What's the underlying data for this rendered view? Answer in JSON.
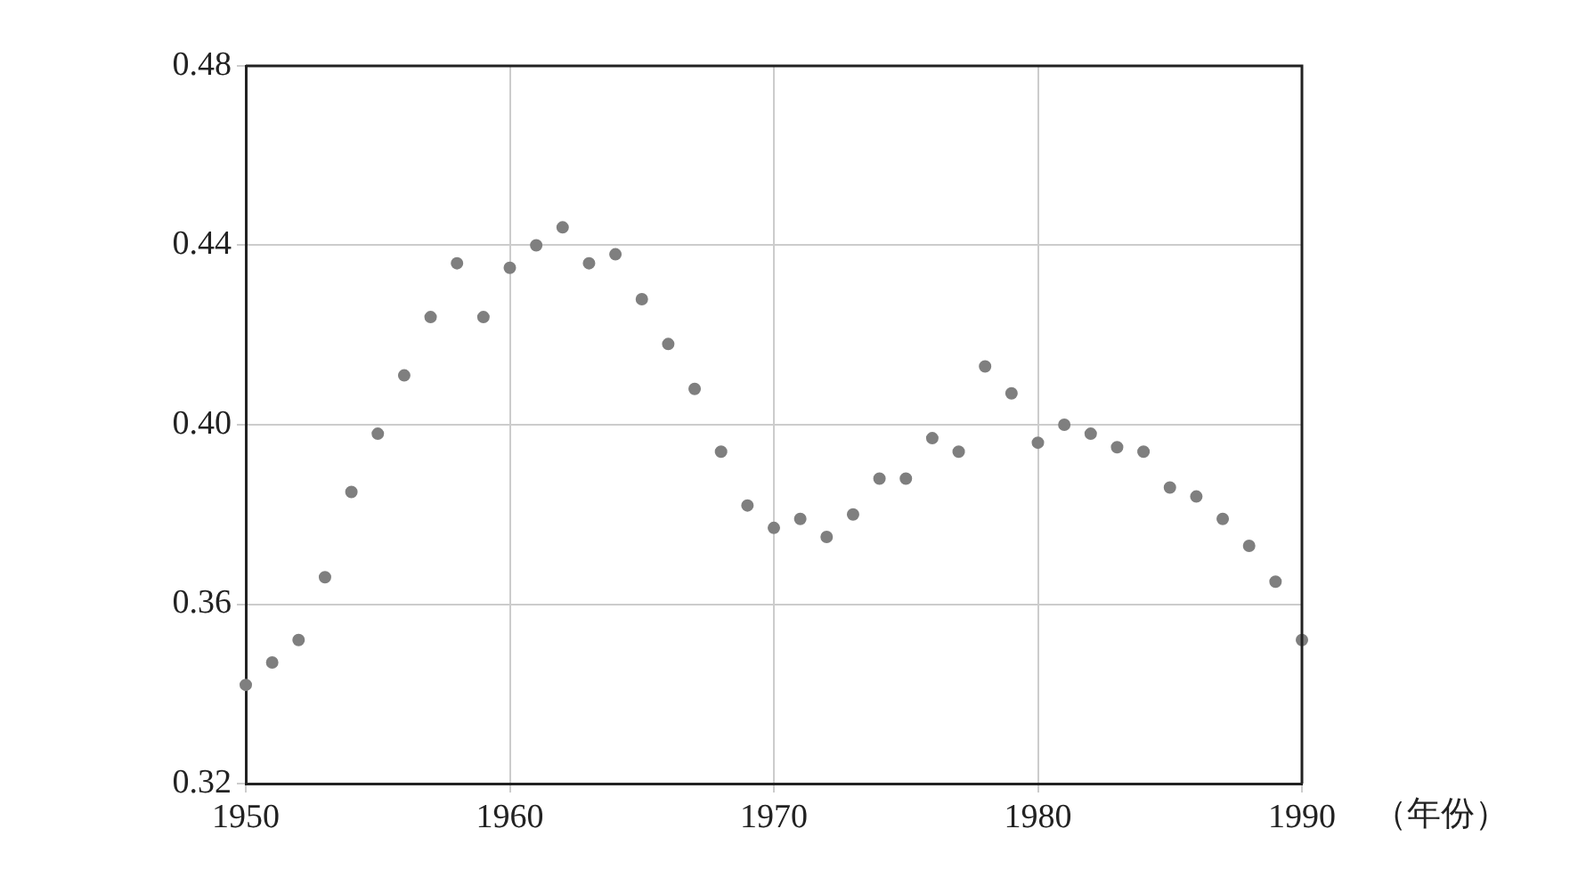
{
  "chart_data": {
    "type": "scatter",
    "xlabel": "（年份）",
    "x": [
      1950,
      1951,
      1952,
      1953,
      1954,
      1955,
      1956,
      1957,
      1958,
      1959,
      1960,
      1961,
      1962,
      1963,
      1964,
      1965,
      1966,
      1967,
      1968,
      1969,
      1970,
      1971,
      1972,
      1973,
      1974,
      1975,
      1976,
      1977,
      1978,
      1979,
      1980,
      1981,
      1982,
      1983,
      1984,
      1985,
      1986,
      1987,
      1988,
      1989,
      1990
    ],
    "series": [
      {
        "color": "#7f7f7f",
        "values": [
          0.342,
          0.347,
          0.352,
          0.366,
          0.385,
          0.398,
          0.411,
          0.424,
          0.436,
          0.424,
          0.435,
          0.44,
          0.444,
          0.436,
          0.438,
          0.428,
          0.418,
          0.408,
          0.394,
          0.382,
          0.377,
          0.379,
          0.375,
          0.38,
          0.388,
          0.388,
          0.397,
          0.394,
          0.413,
          0.407,
          0.396,
          0.4,
          0.398,
          0.395,
          0.394,
          0.386,
          0.384,
          0.379,
          0.373,
          0.365,
          0.352
        ]
      }
    ],
    "xlim": [
      1950,
      1990
    ],
    "xticks": [
      1950,
      1960,
      1970,
      1980,
      1990
    ],
    "ylim": [
      0.32,
      0.48
    ],
    "yticks": [
      0.32,
      0.36,
      {
        "value": 0.4,
        "label": "0.40"
      },
      0.44,
      0.48
    ],
    "grid": true,
    "marker": "circle",
    "legend": false
  }
}
